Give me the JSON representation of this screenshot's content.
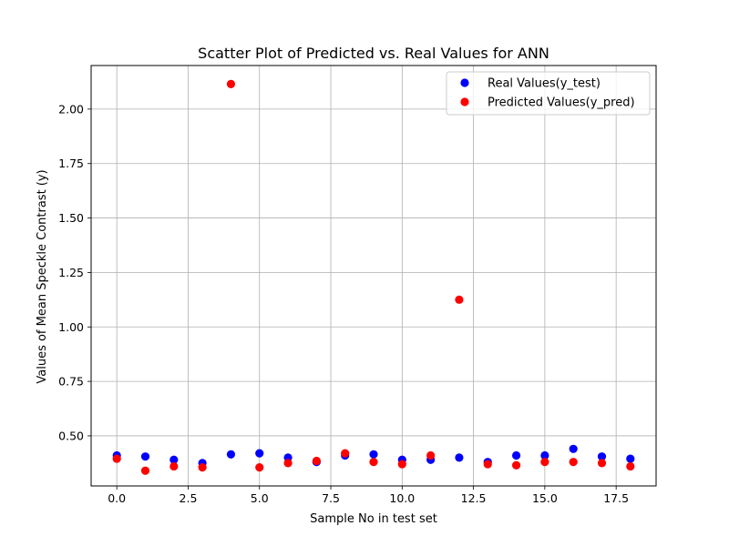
{
  "chart_data": {
    "type": "scatter",
    "title": "Scatter Plot of Predicted vs. Real Values for ANN",
    "xlabel": "Sample No in test set",
    "ylabel": "Values of Mean Speckle Contrast (y)",
    "xlim": [
      -0.9,
      18.9
    ],
    "ylim": [
      0.27,
      2.2
    ],
    "xticks": [
      0.0,
      2.5,
      5.0,
      7.5,
      10.0,
      12.5,
      15.0,
      17.5
    ],
    "xtick_labels": [
      "0.0",
      "2.5",
      "5.0",
      "7.5",
      "10.0",
      "12.5",
      "15.0",
      "17.5"
    ],
    "yticks": [
      0.5,
      0.75,
      1.0,
      1.25,
      1.5,
      1.75,
      2.0
    ],
    "ytick_labels": [
      "0.50",
      "0.75",
      "1.00",
      "1.25",
      "1.50",
      "1.75",
      "2.00"
    ],
    "grid": true,
    "legend_position": "top-right",
    "series": [
      {
        "name": "Real Values(y_test)",
        "color": "#0000ff",
        "x": [
          0,
          1,
          2,
          3,
          4,
          5,
          6,
          7,
          8,
          9,
          10,
          11,
          12,
          13,
          14,
          15,
          16,
          17,
          18
        ],
        "y": [
          0.41,
          0.405,
          0.39,
          0.375,
          0.415,
          0.42,
          0.4,
          0.38,
          0.41,
          0.415,
          0.39,
          0.39,
          0.4,
          0.38,
          0.41,
          0.41,
          0.44,
          0.405,
          0.395
        ]
      },
      {
        "name": "Predicted Values(y_pred)",
        "color": "#ff0000",
        "x": [
          0,
          1,
          2,
          3,
          4,
          5,
          6,
          7,
          8,
          9,
          10,
          11,
          12,
          13,
          14,
          15,
          16,
          17,
          18
        ],
        "y": [
          0.395,
          0.34,
          0.36,
          0.355,
          2.115,
          0.355,
          0.375,
          0.385,
          0.42,
          0.38,
          0.37,
          0.41,
          1.125,
          0.37,
          0.365,
          0.38,
          0.38,
          0.375,
          0.36
        ]
      }
    ]
  }
}
